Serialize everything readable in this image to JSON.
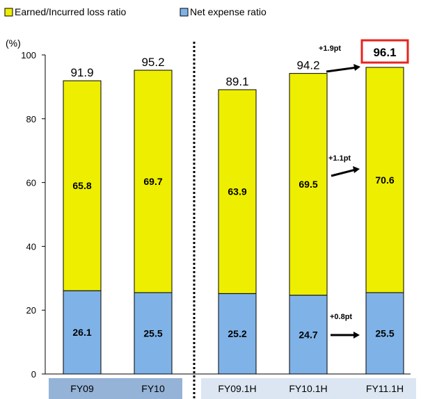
{
  "chart_data": {
    "type": "bar",
    "stacked": true,
    "ylabel": "(%)",
    "ylim": [
      0,
      100
    ],
    "yticks": [
      0,
      20,
      40,
      60,
      80,
      100
    ],
    "categories": [
      "FY09",
      "FY10",
      "FY09.1H",
      "FY10.1H",
      "FY11.1H"
    ],
    "category_groups": [
      {
        "categories": [
          "FY09",
          "FY10"
        ],
        "color": "#95b3d7"
      },
      {
        "categories": [
          "FY09.1H",
          "FY10.1H",
          "FY11.1H"
        ],
        "color": "#dce6f2"
      }
    ],
    "series": [
      {
        "name": "Net expense ratio",
        "color": "#7fb3e8",
        "values": [
          26.1,
          25.5,
          25.2,
          24.7,
          25.5
        ]
      },
      {
        "name": "Earned/Incurred loss ratio",
        "color": "#eeee00",
        "values": [
          65.8,
          69.7,
          63.9,
          69.5,
          70.6
        ]
      }
    ],
    "totals": [
      "91.9",
      "95.2",
      "89.1",
      "94.2",
      "96.1"
    ],
    "highlight_index": 4,
    "highlight_color": "#e8231f",
    "legend": [
      "Earned/Incurred loss ratio",
      "Net expense ratio"
    ],
    "legend_position": "top-left",
    "grid": false,
    "separator": "dotted line between FY10 and FY09.1H",
    "annotations": [
      {
        "text": "+1.9pt",
        "target": "total"
      },
      {
        "text": "+1.1pt",
        "target": "Earned/Incurred loss ratio"
      },
      {
        "text": "+0.8pt",
        "target": "Net expense ratio"
      }
    ]
  }
}
